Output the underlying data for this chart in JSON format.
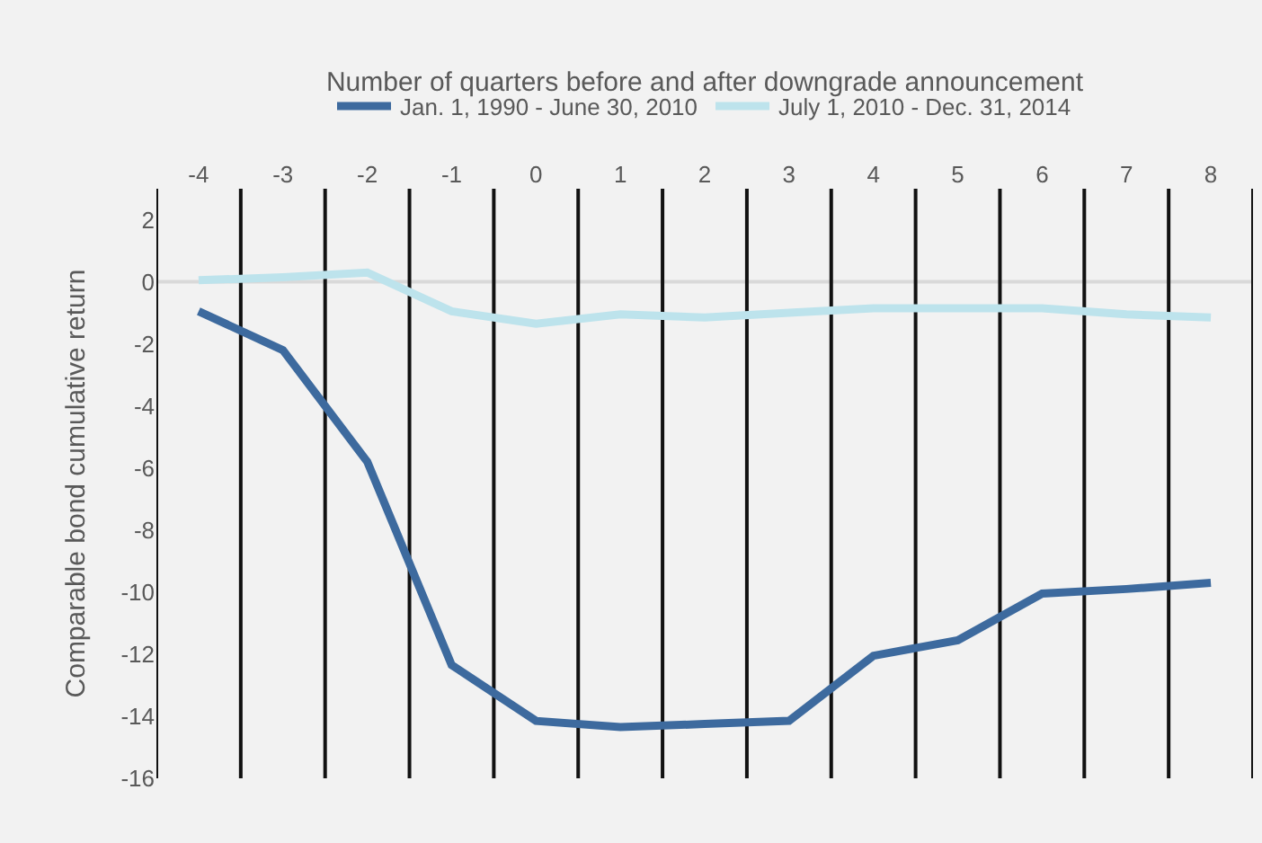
{
  "chart_data": {
    "type": "line",
    "xlabel": "Number of quarters before and after downgrade announcement",
    "ylabel": "Comparable bond cumulative return",
    "categories": [
      "-4",
      "-3",
      "-2",
      "-1",
      "0",
      "1",
      "2",
      "3",
      "4",
      "5",
      "6",
      "7",
      "8"
    ],
    "series": [
      {
        "name": "Jan. 1, 1990 - June 30, 2010",
        "color": "#3d6a9e",
        "values": [
          -0.95,
          -2.2,
          -5.8,
          -12.35,
          -14.15,
          -14.35,
          -14.25,
          -14.15,
          -12.05,
          -11.55,
          -10.05,
          -9.9,
          -9.7
        ]
      },
      {
        "name": "July 1, 2010 - Dec. 31, 2014",
        "color": "#bde3ec",
        "values": [
          0.05,
          0.15,
          0.3,
          -0.95,
          -1.35,
          -1.05,
          -1.15,
          -1.0,
          -0.85,
          -0.85,
          -0.85,
          -1.05,
          -1.15
        ]
      }
    ],
    "ylim": [
      -16,
      3
    ],
    "yticks": [
      -16,
      -14,
      -12,
      -10,
      -8,
      -6,
      -4,
      -2,
      0,
      2
    ],
    "ref_lines": [
      {
        "axis": "y",
        "value": 0,
        "color": "#d9d9d9"
      }
    ],
    "grid": "x",
    "legend": "top",
    "marker": "none",
    "line_style": "solid"
  }
}
